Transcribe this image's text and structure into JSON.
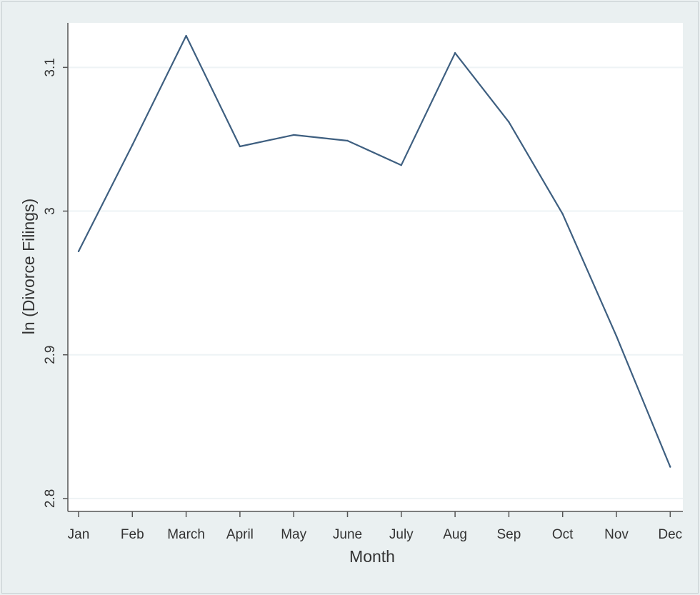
{
  "chart_data": {
    "type": "line",
    "xlabel": "Month",
    "ylabel": "ln (Divorce Filings)",
    "categories": [
      "Jan",
      "Feb",
      "March",
      "April",
      "May",
      "June",
      "July",
      "Aug",
      "Sep",
      "Oct",
      "Nov",
      "Dec"
    ],
    "series": [
      {
        "values": [
          2.972,
          3.046,
          3.122,
          3.045,
          3.053,
          3.049,
          3.032,
          3.11,
          3.062,
          2.998,
          2.913,
          2.822
        ]
      }
    ],
    "yticks": [
      "2.8",
      "2.9",
      "3",
      "3.1"
    ],
    "ylim": [
      2.791,
      3.131
    ],
    "grid": true,
    "colors": {
      "line": "#3e5f80",
      "plot_bg": "#ffffff",
      "outer_bg": "#eaf0f1",
      "grid": "#eef3f5",
      "axis": "#555555"
    }
  }
}
